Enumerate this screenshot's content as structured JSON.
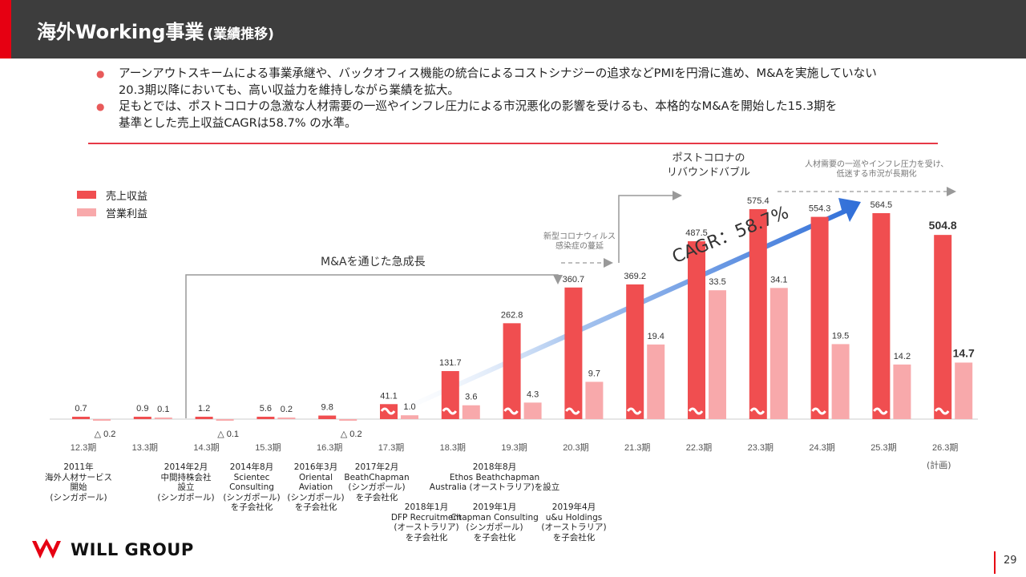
{
  "header": {
    "title": "海外Working事業",
    "subtitle": "(業績推移)"
  },
  "bullets": [
    {
      "line1": "アーンアウトスキームによる事業承継や、バックオフィス機能の統合によるコストシナジーの追求などPMIを円滑に進め、M&Aを実施していない",
      "line2": "20.3期以降においても、高い収益力を維持しながら業績を拡大。"
    },
    {
      "line1": "足もとでは、ポストコロナの急激な人材需要の一巡やインフレ圧力による市況悪化の影響を受けるも、本格的なM&Aを開始した15.3期を",
      "line2": "基準とした売上収益CAGRは58.7% の水準。"
    }
  ],
  "chart_data": {
    "type": "bar",
    "categories": [
      "12.3期",
      "13.3期",
      "14.3期",
      "15.3期",
      "16.3期",
      "17.3期",
      "18.3期",
      "19.3期",
      "20.3期",
      "21.3期",
      "22.3期",
      "23.3期",
      "24.3期",
      "25.3期",
      "26.3期"
    ],
    "series": [
      {
        "name": "売上収益",
        "color": "#f04e50",
        "values": [
          0.7,
          0.9,
          1.2,
          5.6,
          9.8,
          41.1,
          131.7,
          262.8,
          360.7,
          369.2,
          487.5,
          575.4,
          554.3,
          564.5,
          504.8
        ],
        "labels": [
          "0.7",
          "0.9",
          "1.2",
          "5.6",
          "9.8",
          "41.1",
          "131.7",
          "262.8",
          "360.7",
          "369.2",
          "487.5",
          "575.4",
          "554.3",
          "564.5",
          "504.8"
        ]
      },
      {
        "name": "営業利益",
        "color": "#f8a9ab",
        "values": [
          -0.2,
          0.1,
          -0.1,
          0.2,
          -0.2,
          1.0,
          3.6,
          4.3,
          9.7,
          19.4,
          33.5,
          34.1,
          19.5,
          14.2,
          14.7
        ],
        "labels": [
          "△ 0.2",
          "0.1",
          "△ 0.1",
          "0.2",
          "△ 0.2",
          "1.0",
          "3.6",
          "4.3",
          "9.7",
          "19.4",
          "33.5",
          "34.1",
          "19.5",
          "14.2",
          "14.7"
        ]
      }
    ],
    "plan_note": "(計画)",
    "annotations": {
      "ma_growth": "M&Aを通じた急成長",
      "covid_line1": "新型コロナウィルス",
      "covid_line2": "感染症の蔓延",
      "rebound_line1": "ポストコロナの",
      "rebound_line2": "リバウンドバブル",
      "slowdown_line1": "人材需要の一巡やインフレ圧力を受け、",
      "slowdown_line2": "低迷する市況が長期化",
      "cagr": "CAGR：58.7%"
    }
  },
  "notes": [
    [
      "2011年",
      "海外人材サービス",
      "開始",
      "(シンガポール)"
    ],
    [
      "2014年2月",
      "中間持株会社",
      "設立",
      "(シンガポール)"
    ],
    [
      "2014年8月",
      "Scientec",
      "Consulting",
      "(シンガポール)",
      "を子会社化"
    ],
    [
      "2016年3月",
      "Oriental",
      "Aviation",
      "(シンガポール)",
      "を子会社化"
    ],
    [
      "2017年2月",
      "BeathChapman",
      "(シンガポール)",
      "を子会社化"
    ],
    [
      "2018年8月",
      "Ethos Beathchapman",
      "Australia (オーストラリア)を設立"
    ],
    [
      "2018年1月",
      "DFP Recruitment",
      "(オーストラリア)",
      "を子会社化"
    ],
    [
      "2019年1月",
      "Chapman Consulting",
      "(シンガポール)",
      "を子会社化"
    ],
    [
      "2019年4月",
      "u&u Holdings",
      "(オーストラリア)",
      "を子会社化"
    ]
  ],
  "footer": {
    "company": "WILL GROUP",
    "page": "29"
  }
}
